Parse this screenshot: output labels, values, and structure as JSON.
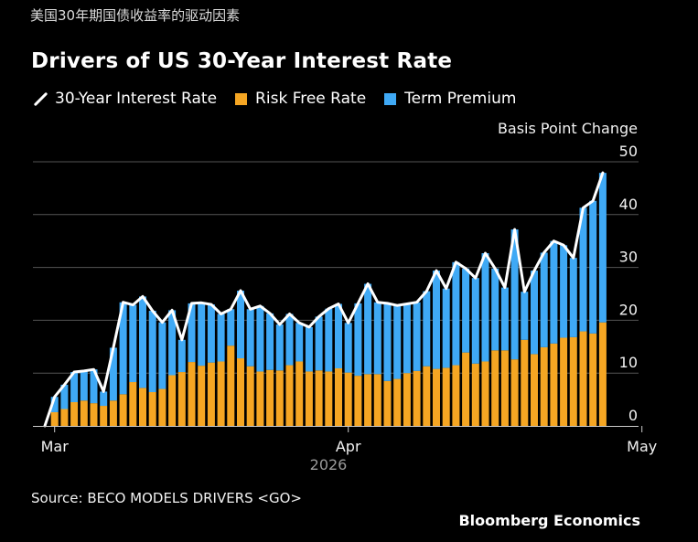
{
  "top_caption": "美国30年期国债收益率的驱动因素",
  "footer": {
    "source": "Source: BECO MODELS DRIVERS <GO>",
    "brand": "Bloomberg Economics"
  },
  "colors": {
    "risk_free": "#f5a623",
    "term_premium": "#3fa9f5",
    "line": "#ffffff",
    "grid": "#555555",
    "background": "#000000"
  },
  "chart_data": {
    "type": "bar",
    "stacked": true,
    "title": "Drivers of US 30-Year Interest Rate",
    "unit_label": "Basis Point Change",
    "ylim": [
      0,
      50
    ],
    "y_ticks": [
      0,
      10,
      20,
      30,
      40,
      50
    ],
    "x_tick_labels": [
      "Mar",
      "Apr",
      "May"
    ],
    "x_tick_index": [
      1,
      31,
      61
    ],
    "year_label": "2026",
    "grid": true,
    "legend_position": "top-left",
    "series": [
      {
        "name": "Risk Free Rate",
        "kind": "bar",
        "values": [
          0,
          2.6,
          3.2,
          4.5,
          4.8,
          4.3,
          3.8,
          4.8,
          6.0,
          8.3,
          7.2,
          6.4,
          7.0,
          9.6,
          10.2,
          12.1,
          11.4,
          12.0,
          12.2,
          15.2,
          12.8,
          11.3,
          10.3,
          10.6,
          10.5,
          11.5,
          12.2,
          10.3,
          10.5,
          10.3,
          10.9,
          10.1,
          9.5,
          9.8,
          9.8,
          8.5,
          8.9,
          10.0,
          10.4,
          11.3,
          10.8,
          11.0,
          11.5,
          13.9,
          11.8,
          12.2,
          14.3,
          14.3,
          12.6,
          16.3,
          13.6,
          14.9,
          15.6,
          16.7,
          16.8,
          17.9,
          17.5,
          19.6
        ]
      },
      {
        "name": "Term Premium",
        "kind": "bar",
        "values": [
          0,
          2.9,
          4.6,
          5.7,
          5.6,
          6.4,
          2.7,
          10.0,
          17.4,
          14.6,
          17.3,
          15.4,
          12.6,
          12.3,
          6.1,
          11.1,
          11.9,
          11.0,
          9.0,
          6.9,
          12.8,
          10.8,
          12.4,
          10.7,
          8.7,
          9.7,
          7.3,
          8.4,
          10.2,
          11.9,
          12.2,
          9.4,
          13.7,
          17.1,
          13.6,
          14.7,
          13.9,
          13.1,
          13.0,
          14.2,
          18.6,
          15.0,
          19.5,
          15.9,
          16.2,
          20.5,
          15.5,
          11.9,
          24.6,
          9.1,
          15.8,
          17.9,
          19.4,
          17.5,
          15.0,
          23.4,
          25.1,
          28.3
        ]
      },
      {
        "name": "30-Year Interest Rate",
        "kind": "line",
        "values": [
          0,
          5.5,
          7.8,
          10.2,
          10.4,
          10.7,
          6.5,
          14.8,
          23.4,
          22.9,
          24.5,
          21.8,
          19.6,
          21.9,
          16.3,
          23.2,
          23.3,
          23.0,
          21.2,
          22.1,
          25.6,
          22.1,
          22.7,
          21.3,
          19.2,
          21.2,
          19.5,
          18.7,
          20.7,
          22.2,
          23.1,
          19.5,
          23.2,
          26.9,
          23.4,
          23.2,
          22.8,
          23.1,
          23.4,
          25.5,
          29.4,
          26.0,
          31.0,
          29.8,
          28.0,
          32.7,
          29.8,
          26.2,
          37.2,
          25.4,
          29.4,
          32.8,
          35.0,
          34.2,
          31.8,
          41.3,
          42.6,
          47.9
        ]
      }
    ]
  }
}
